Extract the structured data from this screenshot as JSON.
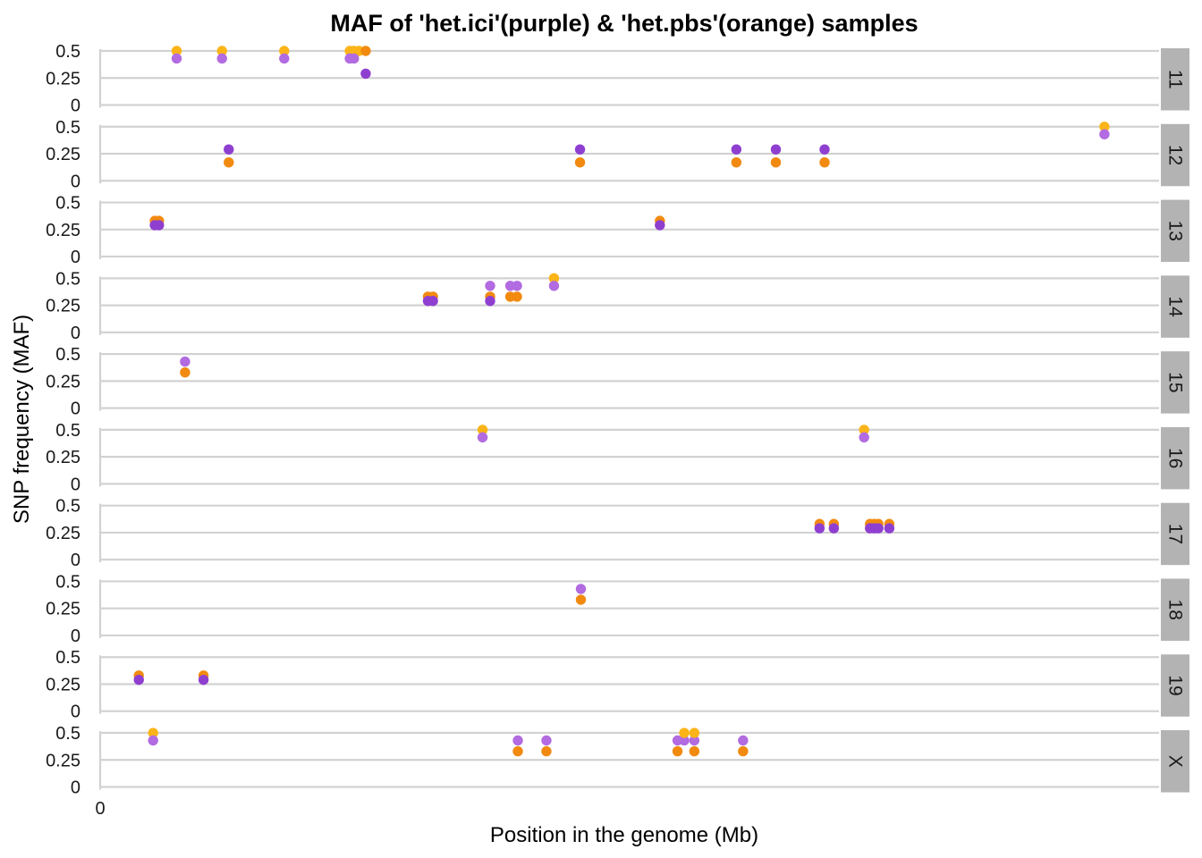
{
  "chart_data": {
    "type": "scatter",
    "title": "MAF of 'het.ici'(purple) & 'het.pbs'(orange) samples",
    "xlabel": "Position in the genome (Mb)",
    "ylabel": "SNP frequency (MAF)",
    "x_tick_labels": [
      "0"
    ],
    "y_tick_labels": [
      "0",
      "0.25",
      "0.5"
    ],
    "ylim": [
      0,
      0.5
    ],
    "xlim": [
      0,
      126
    ],
    "grid": true,
    "facet_layout": "stacked rows, strip labels on right",
    "colors": {
      "strip_bg": "#b3b3b3",
      "grid": "#d2d2d2"
    },
    "series_styles": [
      {
        "color": "#8f3fd0"
      },
      {
        "color": "#f28a10"
      },
      {
        "color": "#b26be0"
      },
      {
        "color": "#fbb418"
      }
    ],
    "facets": [
      {
        "label": "11",
        "points": [
          {
            "x": 9.1,
            "y": 0.5,
            "s": 3
          },
          {
            "x": 9.1,
            "y": 0.43,
            "s": 2
          },
          {
            "x": 14.5,
            "y": 0.5,
            "s": 3
          },
          {
            "x": 14.5,
            "y": 0.43,
            "s": 2
          },
          {
            "x": 21.9,
            "y": 0.5,
            "s": 3
          },
          {
            "x": 21.9,
            "y": 0.43,
            "s": 2
          },
          {
            "x": 29.7,
            "y": 0.5,
            "s": 3
          },
          {
            "x": 30.2,
            "y": 0.5,
            "s": 3
          },
          {
            "x": 30.8,
            "y": 0.5,
            "s": 3
          },
          {
            "x": 31.6,
            "y": 0.5,
            "s": 1
          },
          {
            "x": 29.7,
            "y": 0.43,
            "s": 2
          },
          {
            "x": 30.2,
            "y": 0.43,
            "s": 2
          },
          {
            "x": 31.6,
            "y": 0.29,
            "s": 0
          }
        ]
      },
      {
        "label": "12",
        "points": [
          {
            "x": 15.3,
            "y": 0.29,
            "s": 0
          },
          {
            "x": 15.3,
            "y": 0.17,
            "s": 1
          },
          {
            "x": 57.1,
            "y": 0.29,
            "s": 0
          },
          {
            "x": 57.1,
            "y": 0.17,
            "s": 1
          },
          {
            "x": 75.7,
            "y": 0.29,
            "s": 0
          },
          {
            "x": 75.7,
            "y": 0.17,
            "s": 1
          },
          {
            "x": 80.4,
            "y": 0.29,
            "s": 0
          },
          {
            "x": 80.4,
            "y": 0.17,
            "s": 1
          },
          {
            "x": 86.2,
            "y": 0.29,
            "s": 0
          },
          {
            "x": 86.2,
            "y": 0.17,
            "s": 1
          },
          {
            "x": 119.5,
            "y": 0.5,
            "s": 3
          },
          {
            "x": 119.5,
            "y": 0.43,
            "s": 2
          }
        ]
      },
      {
        "label": "13",
        "points": [
          {
            "x": 6.5,
            "y": 0.33,
            "s": 1
          },
          {
            "x": 7.0,
            "y": 0.33,
            "s": 1
          },
          {
            "x": 6.5,
            "y": 0.29,
            "s": 0
          },
          {
            "x": 7.0,
            "y": 0.29,
            "s": 0
          },
          {
            "x": 66.6,
            "y": 0.33,
            "s": 1
          },
          {
            "x": 66.6,
            "y": 0.29,
            "s": 0
          }
        ]
      },
      {
        "label": "14",
        "points": [
          {
            "x": 39.0,
            "y": 0.33,
            "s": 1
          },
          {
            "x": 39.6,
            "y": 0.33,
            "s": 1
          },
          {
            "x": 39.0,
            "y": 0.29,
            "s": 0
          },
          {
            "x": 39.6,
            "y": 0.29,
            "s": 0
          },
          {
            "x": 46.4,
            "y": 0.43,
            "s": 2
          },
          {
            "x": 46.4,
            "y": 0.33,
            "s": 1
          },
          {
            "x": 46.4,
            "y": 0.29,
            "s": 0
          },
          {
            "x": 48.8,
            "y": 0.43,
            "s": 2
          },
          {
            "x": 49.6,
            "y": 0.43,
            "s": 2
          },
          {
            "x": 48.8,
            "y": 0.33,
            "s": 1
          },
          {
            "x": 49.6,
            "y": 0.33,
            "s": 1
          },
          {
            "x": 54.0,
            "y": 0.5,
            "s": 3
          },
          {
            "x": 54.0,
            "y": 0.43,
            "s": 2
          }
        ]
      },
      {
        "label": "15",
        "points": [
          {
            "x": 10.1,
            "y": 0.43,
            "s": 2
          },
          {
            "x": 10.1,
            "y": 0.33,
            "s": 1
          }
        ]
      },
      {
        "label": "16",
        "points": [
          {
            "x": 45.5,
            "y": 0.5,
            "s": 3
          },
          {
            "x": 45.5,
            "y": 0.43,
            "s": 2
          },
          {
            "x": 90.9,
            "y": 0.5,
            "s": 3
          },
          {
            "x": 90.9,
            "y": 0.43,
            "s": 2
          }
        ]
      },
      {
        "label": "17",
        "points": [
          {
            "x": 85.6,
            "y": 0.33,
            "s": 1
          },
          {
            "x": 85.6,
            "y": 0.29,
            "s": 0
          },
          {
            "x": 87.3,
            "y": 0.33,
            "s": 1
          },
          {
            "x": 87.3,
            "y": 0.29,
            "s": 0
          },
          {
            "x": 91.6,
            "y": 0.33,
            "s": 1
          },
          {
            "x": 92.1,
            "y": 0.33,
            "s": 1
          },
          {
            "x": 92.6,
            "y": 0.33,
            "s": 1
          },
          {
            "x": 91.6,
            "y": 0.29,
            "s": 0
          },
          {
            "x": 92.1,
            "y": 0.29,
            "s": 0
          },
          {
            "x": 92.6,
            "y": 0.29,
            "s": 0
          },
          {
            "x": 93.9,
            "y": 0.33,
            "s": 1
          },
          {
            "x": 93.9,
            "y": 0.29,
            "s": 0
          }
        ]
      },
      {
        "label": "18",
        "points": [
          {
            "x": 57.2,
            "y": 0.43,
            "s": 2
          },
          {
            "x": 57.2,
            "y": 0.33,
            "s": 1
          }
        ]
      },
      {
        "label": "19",
        "points": [
          {
            "x": 4.6,
            "y": 0.33,
            "s": 1
          },
          {
            "x": 4.6,
            "y": 0.29,
            "s": 0
          },
          {
            "x": 12.3,
            "y": 0.33,
            "s": 1
          },
          {
            "x": 12.3,
            "y": 0.29,
            "s": 0
          }
        ]
      },
      {
        "label": "X",
        "points": [
          {
            "x": 6.3,
            "y": 0.5,
            "s": 3
          },
          {
            "x": 6.3,
            "y": 0.43,
            "s": 2
          },
          {
            "x": 49.7,
            "y": 0.43,
            "s": 2
          },
          {
            "x": 49.7,
            "y": 0.33,
            "s": 1
          },
          {
            "x": 53.1,
            "y": 0.43,
            "s": 2
          },
          {
            "x": 53.1,
            "y": 0.33,
            "s": 1
          },
          {
            "x": 68.7,
            "y": 0.43,
            "s": 2
          },
          {
            "x": 69.5,
            "y": 0.43,
            "s": 2
          },
          {
            "x": 70.7,
            "y": 0.43,
            "s": 2
          },
          {
            "x": 69.5,
            "y": 0.5,
            "s": 3
          },
          {
            "x": 70.7,
            "y": 0.5,
            "s": 3
          },
          {
            "x": 68.7,
            "y": 0.33,
            "s": 1
          },
          {
            "x": 70.7,
            "y": 0.33,
            "s": 1
          },
          {
            "x": 76.5,
            "y": 0.43,
            "s": 2
          },
          {
            "x": 76.5,
            "y": 0.33,
            "s": 1
          }
        ]
      }
    ]
  }
}
